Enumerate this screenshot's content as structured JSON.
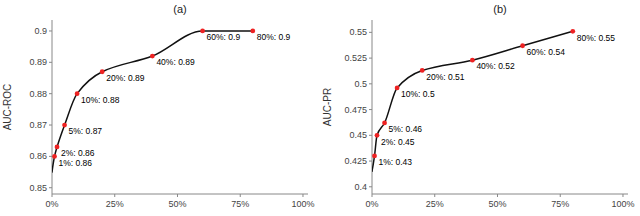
{
  "chart_data": [
    {
      "type": "line",
      "title": "(a)",
      "y_label": "AUC-ROC",
      "xlim": [
        0.0,
        1.02
      ],
      "xticks": [
        {
          "value": 0.0,
          "label": "0%"
        },
        {
          "value": 0.25,
          "label": "25%"
        },
        {
          "value": 0.5,
          "label": "50%"
        },
        {
          "value": 0.75,
          "label": "75%"
        },
        {
          "value": 1.0,
          "label": "100%"
        }
      ],
      "ylim": [
        0.848,
        0.9035
      ],
      "yticks": [
        0.85,
        0.86,
        0.87,
        0.88,
        0.89,
        0.9
      ],
      "grid": false,
      "data_labels": true,
      "series": [
        {
          "type": "line",
          "color": "#111111",
          "x": [
            0.0,
            0.01,
            0.02,
            0.05,
            0.1,
            0.2,
            0.4,
            0.6,
            0.8
          ],
          "values": [
            0.855,
            0.86,
            0.863,
            0.87,
            0.88,
            0.887,
            0.892,
            0.9,
            0.9
          ]
        },
        {
          "type": "scatter",
          "color": "#ee2222",
          "marker": "circle",
          "x": [
            0.01,
            0.02,
            0.05,
            0.1,
            0.2,
            0.4,
            0.6,
            0.8
          ],
          "values": [
            0.86,
            0.863,
            0.87,
            0.88,
            0.887,
            0.892,
            0.9,
            0.9
          ],
          "value_labels": [
            "1%: 0.86",
            "2%: 0.86",
            "5%: 0.87",
            "10%: 0.88",
            "20%: 0.89",
            "40%: 0.89",
            "60%: 0.9",
            "80%: 0.9"
          ]
        }
      ]
    },
    {
      "type": "line",
      "title": "(b)",
      "y_label": "AUC-PR",
      "xlim": [
        0.0,
        1.02
      ],
      "xticks": [
        {
          "value": 0.0,
          "label": "0%"
        },
        {
          "value": 0.25,
          "label": "25%"
        },
        {
          "value": 0.5,
          "label": "50%"
        },
        {
          "value": 0.75,
          "label": "75%"
        },
        {
          "value": 1.0,
          "label": "100%"
        }
      ],
      "ylim": [
        0.393,
        0.562
      ],
      "yticks": [
        0.4,
        0.425,
        0.45,
        0.475,
        0.5,
        0.525,
        0.55
      ],
      "grid": false,
      "data_labels": true,
      "series": [
        {
          "type": "line",
          "color": "#111111",
          "x": [
            0.0,
            0.01,
            0.02,
            0.05,
            0.1,
            0.2,
            0.4,
            0.6,
            0.8
          ],
          "values": [
            0.415,
            0.43,
            0.45,
            0.462,
            0.496,
            0.513,
            0.523,
            0.537,
            0.551
          ]
        },
        {
          "type": "scatter",
          "color": "#ee2222",
          "marker": "circle",
          "x": [
            0.01,
            0.02,
            0.05,
            0.1,
            0.2,
            0.4,
            0.6,
            0.8
          ],
          "values": [
            0.43,
            0.45,
            0.462,
            0.496,
            0.513,
            0.523,
            0.537,
            0.551
          ],
          "value_labels": [
            "1%: 0.43",
            "2%: 0.45",
            "5%: 0.46",
            "10%: 0.5",
            "20%: 0.51",
            "40%: 0.52",
            "60%: 0.54",
            "80%: 0.55"
          ]
        }
      ]
    }
  ]
}
